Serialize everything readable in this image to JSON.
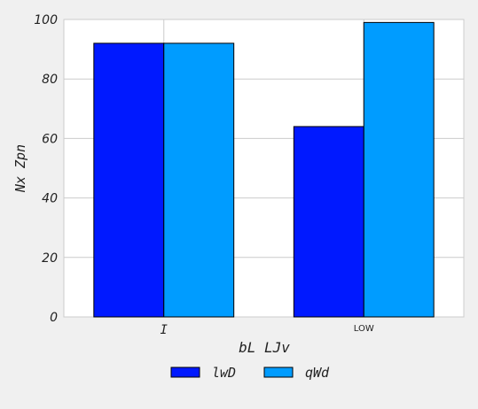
{
  "chart_data": {
    "type": "bar",
    "title": "",
    "xlabel": "bL LJv",
    "ylabel": "Nx Zpn",
    "ylim": [
      0,
      100
    ],
    "yticks": [
      0,
      20,
      40,
      60,
      80,
      100
    ],
    "grid": true,
    "legend_position": "bottom-center",
    "categories": [
      "I",
      "LOW"
    ],
    "series": [
      {
        "name": "lwD",
        "color": "#0019ff",
        "values": [
          92,
          64
        ]
      },
      {
        "name": "qWd",
        "color": "#009cff",
        "values": [
          92,
          99
        ]
      }
    ]
  }
}
